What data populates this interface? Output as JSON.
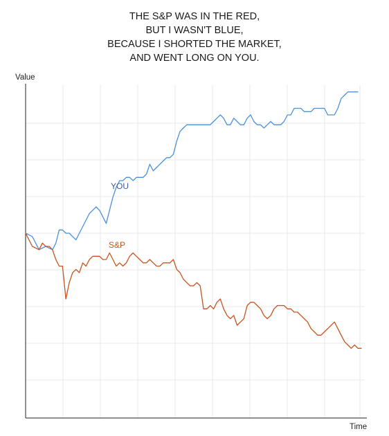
{
  "chart_data": {
    "type": "line",
    "title_lines": [
      "THE S&P WAS IN THE RED,",
      "BUT I WASN'T BLUE,",
      "BECAUSE I SHORTED THE MARKET,",
      "AND WENT LONG ON YOU."
    ],
    "xlabel": "Time",
    "ylabel": "Value",
    "xlim": [
      0,
      100
    ],
    "ylim": [
      0,
      100
    ],
    "grid": true,
    "colors": {
      "you": "#4a90d9",
      "sp": "#c8521e",
      "grid": "#e9e9e9",
      "axis": "#222222",
      "label_you": "#3d5aa8",
      "label_sp": "#c8521e"
    },
    "series": [
      {
        "name": "YOU",
        "x": [
          0,
          2,
          4,
          6,
          8,
          9,
          10,
          11,
          12,
          13,
          14,
          15,
          16,
          17,
          18,
          19,
          20,
          21,
          22,
          23,
          24,
          25,
          26,
          27,
          28,
          29,
          30,
          31,
          32,
          33,
          34,
          35,
          36,
          37,
          38,
          39,
          40,
          41,
          42,
          43,
          44,
          45,
          46,
          47,
          48,
          49,
          50,
          51,
          52,
          53,
          54,
          55,
          56,
          57,
          58,
          59,
          60,
          61,
          62,
          63,
          64,
          65,
          66,
          67,
          68,
          69,
          70,
          71,
          72,
          73,
          74,
          75,
          76,
          77,
          78,
          79,
          80,
          81,
          82,
          83,
          84,
          85,
          86,
          87,
          88,
          89,
          90,
          91,
          92,
          93,
          94,
          95,
          96,
          97,
          98,
          99
        ],
        "y": [
          56,
          55,
          51,
          52,
          51,
          53,
          57,
          57,
          56,
          56,
          55,
          54,
          56,
          58,
          60,
          62,
          63,
          64,
          63,
          61,
          59,
          63,
          67,
          70,
          72,
          72,
          73,
          73,
          72,
          73,
          73,
          73,
          74,
          77,
          75,
          76,
          77,
          78,
          79,
          79,
          80,
          84,
          87,
          88,
          89,
          89,
          89,
          89,
          89,
          89,
          89,
          89,
          90,
          91,
          92,
          91,
          89,
          89,
          91,
          90,
          89,
          89,
          91,
          92,
          90,
          89,
          89,
          88,
          89,
          90,
          89,
          89,
          89,
          90,
          92,
          92,
          94,
          94,
          94,
          93,
          93,
          93,
          94,
          94,
          94,
          94,
          92,
          92,
          92,
          94,
          97,
          98,
          99,
          99,
          99,
          99
        ]
      },
      {
        "name": "S&P",
        "x": [
          0,
          2,
          4,
          5,
          6,
          7,
          8,
          9,
          10,
          11,
          12,
          13,
          14,
          15,
          16,
          17,
          18,
          19,
          20,
          21,
          22,
          23,
          24,
          25,
          26,
          27,
          28,
          29,
          30,
          31,
          32,
          33,
          34,
          35,
          36,
          37,
          38,
          39,
          40,
          41,
          42,
          43,
          44,
          45,
          46,
          47,
          48,
          49,
          50,
          51,
          52,
          53,
          54,
          55,
          56,
          57,
          58,
          59,
          60,
          61,
          62,
          63,
          64,
          65,
          66,
          67,
          68,
          69,
          70,
          71,
          72,
          73,
          74,
          75,
          76,
          77,
          78,
          79,
          80,
          81,
          82,
          83,
          84,
          85,
          86,
          87,
          88,
          89,
          90,
          91,
          92,
          93,
          94,
          95,
          96,
          97,
          98,
          99,
          100
        ],
        "y": [
          56,
          52,
          51,
          53,
          52,
          52,
          51,
          48,
          46,
          46,
          36,
          41,
          44,
          45,
          44,
          47,
          46,
          48,
          49,
          49,
          49,
          48,
          48,
          50,
          48,
          46,
          47,
          46,
          47,
          49,
          50,
          49,
          48,
          47,
          47,
          48,
          47,
          46,
          46,
          47,
          47,
          47,
          48,
          45,
          44,
          42,
          41,
          40,
          40,
          41,
          40,
          33,
          33,
          34,
          33,
          35,
          36,
          33,
          31,
          30,
          31,
          28,
          29,
          30,
          34,
          35,
          35,
          34,
          33,
          31,
          30,
          31,
          33,
          34,
          34,
          34,
          33,
          33,
          32,
          32,
          31,
          30,
          29,
          27,
          26,
          25,
          25,
          26,
          27,
          28,
          29,
          27,
          25,
          23,
          22,
          21,
          22,
          21,
          21
        ]
      }
    ],
    "annotations": [
      {
        "text": "YOU",
        "series": "YOU"
      },
      {
        "text": "S&P",
        "series": "S&P"
      }
    ]
  }
}
